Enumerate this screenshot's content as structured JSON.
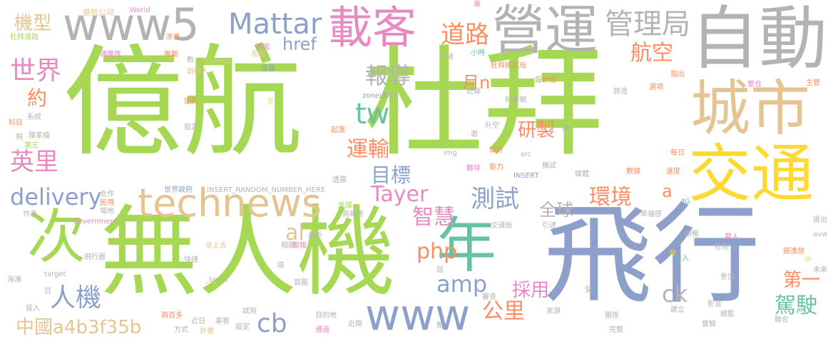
{
  "palette": {
    "green": "#a6d854",
    "gray": "#b3b3b3",
    "pink": "#e78ac3",
    "blue": "#8da0cb",
    "teal": "#66c2a5",
    "orange": "#fc8d62",
    "yellow": "#ffd92f",
    "tan": "#e5c494"
  },
  "words": [
    {
      "text": "億航"
    },
    {
      "text": "杜拜"
    },
    {
      "text": "飛行"
    },
    {
      "text": "無人機"
    },
    {
      "text": "自動"
    },
    {
      "text": "營運"
    },
    {
      "text": "載客"
    },
    {
      "text": "www5"
    },
    {
      "text": "城市"
    },
    {
      "text": "交通"
    },
    {
      "text": "technews"
    },
    {
      "text": "次"
    },
    {
      "text": "年"
    },
    {
      "text": "www"
    },
    {
      "text": "tw"
    },
    {
      "text": "Mattar"
    },
    {
      "text": "管理局"
    },
    {
      "text": "道路"
    },
    {
      "text": "航空"
    },
    {
      "text": "報導"
    },
    {
      "text": "運輸"
    },
    {
      "text": "目標"
    },
    {
      "text": "Tayer"
    },
    {
      "text": "href"
    },
    {
      "text": "世界"
    },
    {
      "text": "機型"
    },
    {
      "text": "英里"
    },
    {
      "text": "delivery"
    },
    {
      "text": "人機"
    },
    {
      "text": "中國a4b3f35b"
    },
    {
      "text": "cb"
    },
    {
      "text": "amp"
    },
    {
      "text": "php"
    },
    {
      "text": "智慧"
    },
    {
      "text": "測試"
    },
    {
      "text": "環境"
    },
    {
      "text": "研製"
    },
    {
      "text": "公里"
    },
    {
      "text": "駕駛"
    },
    {
      "text": "第一"
    },
    {
      "text": "ck"
    },
    {
      "text": "採用"
    },
    {
      "text": "全球"
    },
    {
      "text": "月n"
    },
    {
      "text": "al"
    },
    {
      "text": "a"
    },
    {
      "text": "約"
    },
    {
      "text": "億航公司"
    },
    {
      "text": "World"
    },
    {
      "text": "杜拜道路"
    },
    {
      "text": "涉濱"
    },
    {
      "text": "推動"
    },
    {
      "text": "適應性"
    },
    {
      "text": "長程"
    },
    {
      "text": "數"
    },
    {
      "text": "Summit"
    },
    {
      "text": "創辦人"
    },
    {
      "text": "螢幕"
    },
    {
      "text": "杜拜民航局"
    },
    {
      "text": "設計給"
    },
    {
      "text": "小時"
    },
    {
      "text": "行銷"
    },
    {
      "text": "紀錄"
    },
    {
      "text": "財新網"
    },
    {
      "text": "旅途"
    },
    {
      "text": "選項"
    },
    {
      "text": "整合"
    },
    {
      "text": "主管"
    },
    {
      "text": "指出"
    },
    {
      "text": "提升"
    },
    {
      "text": "系統"
    },
    {
      "text": "指定"
    },
    {
      "text": "全"
    },
    {
      "text": "網路"
    },
    {
      "text": "zoneid"
    },
    {
      "text": "起落"
    },
    {
      "text": "科目"
    },
    {
      "text": "飛"
    },
    {
      "text": "陳家倫"
    },
    {
      "text": "第五"
    },
    {
      "text": "升空"
    },
    {
      "text": "邀"
    },
    {
      "text": "時"
    },
    {
      "text": "img"
    },
    {
      "text": "出行"
    },
    {
      "text": "src"
    },
    {
      "text": "能力"
    },
    {
      "text": "夥伴"
    },
    {
      "text": "機試"
    },
    {
      "text": "INSERT"
    },
    {
      "text": "透露"
    },
    {
      "text": "媒體"
    },
    {
      "text": "數據"
    },
    {
      "text": "速度"
    },
    {
      "text": "每日"
    },
    {
      "text": "世界政府"
    },
    {
      "text": "合作"
    },
    {
      "text": "INSERT_RANDOM_NUMBER_HERE"
    },
    {
      "text": "4G"
    },
    {
      "text": "民用"
    },
    {
      "text": "場地"
    },
    {
      "text": "外媒"
    },
    {
      "text": "幸福感"
    },
    {
      "text": "作者"
    },
    {
      "text": "Government"
    },
    {
      "text": "高峰會"
    },
    {
      "text": "交通局"
    },
    {
      "text": "引述"
    },
    {
      "text": "提出"
    },
    {
      "text": "創新"
    },
    {
      "text": "順暢"
    },
    {
      "text": "載人"
    },
    {
      "text": "坐上去"
    },
    {
      "text": "控制"
    },
    {
      "text": "相關"
    },
    {
      "text": "郵報"
    },
    {
      "text": "avw"
    },
    {
      "text": "飛行器"
    },
    {
      "text": "快捷"
    },
    {
      "text": "項"
    },
    {
      "text": "台"
    },
    {
      "text": "引入"
    },
    {
      "text": "親逸放"
    },
    {
      "text": "中"
    },
    {
      "text": "未來"
    },
    {
      "text": "海濱"
    },
    {
      "text": "target"
    },
    {
      "text": "_blank"
    },
    {
      "text": "首圖"
    },
    {
      "text": "屆"
    },
    {
      "text": "參加"
    },
    {
      "text": "受"
    },
    {
      "text": "日"
    },
    {
      "text": "投入"
    },
    {
      "text": "審查"
    },
    {
      "text": "影音"
    },
    {
      "text": "總監"
    },
    {
      "text": "建立"
    },
    {
      "text": "試飛"
    },
    {
      "text": "來源"
    },
    {
      "text": "兩百多"
    },
    {
      "text": "近日"
    },
    {
      "text": "乘客"
    },
    {
      "text": "目的地"
    },
    {
      "text": "關係"
    },
    {
      "text": "實驗"
    },
    {
      "text": "聯合"
    },
    {
      "text": "方式"
    },
    {
      "text": "許書"
    },
    {
      "text": "設定"
    },
    {
      "text": "近期"
    },
    {
      "text": "通過"
    },
    {
      "text": "完整"
    },
    {
      "text": "兼"
    },
    {
      "text": "美國"
    },
    {
      "text": "整"
    }
  ]
}
